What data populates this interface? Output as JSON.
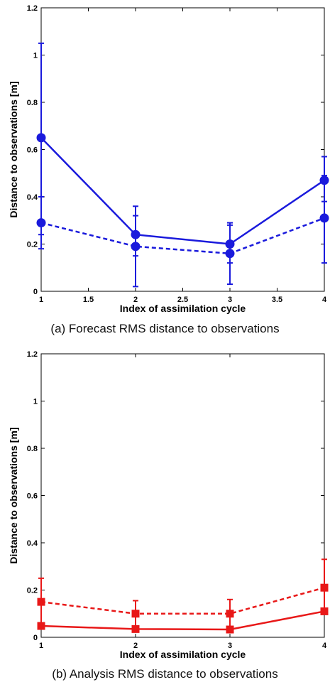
{
  "chart_data": [
    {
      "type": "line",
      "caption": "(a) Forecast RMS distance to observations",
      "xlabel": "Index of assimilation cycle",
      "ylabel": "Distance to observations [m]",
      "xlim": [
        1,
        4
      ],
      "ylim": [
        0,
        1.2
      ],
      "xticks": [
        "1",
        "1.5",
        "2",
        "2.5",
        "3",
        "3.5",
        "4"
      ],
      "yticks": [
        "0",
        "0.2",
        "0.4",
        "0.6",
        "0.8",
        "1",
        "1.2"
      ],
      "color": "#1a1adc",
      "marker": "circle",
      "series": [
        {
          "style": "solid",
          "x": [
            1,
            2,
            3,
            4
          ],
          "y": [
            0.65,
            0.24,
            0.2,
            0.47
          ],
          "err_low": [
            0.24,
            0.15,
            0.12,
            0.38
          ],
          "err_high": [
            1.05,
            0.32,
            0.28,
            0.57
          ]
        },
        {
          "style": "dashed",
          "x": [
            1,
            2,
            3,
            4
          ],
          "y": [
            0.29,
            0.19,
            0.16,
            0.31
          ],
          "err_low": [
            0.18,
            0.02,
            0.03,
            0.12
          ],
          "err_high": [
            0.4,
            0.36,
            0.29,
            0.49
          ]
        }
      ]
    },
    {
      "type": "line",
      "caption": "(b) Analysis RMS distance to observations",
      "xlabel": "Index of assimilation cycle",
      "ylabel": "Distance to observations [m]",
      "xlim": [
        1,
        4
      ],
      "ylim": [
        0,
        1.2
      ],
      "xticks": [
        "1",
        "2",
        "3",
        "4"
      ],
      "yticks": [
        "0",
        "0.2",
        "0.4",
        "0.6",
        "0.8",
        "1",
        "1.2"
      ],
      "color": "#e81818",
      "marker": "square",
      "series": [
        {
          "style": "solid",
          "x": [
            1,
            2,
            3,
            4
          ],
          "y": [
            0.048,
            0.035,
            0.033,
            0.11
          ],
          "err_low": [
            0.042,
            0.03,
            0.028,
            0.1
          ],
          "err_high": [
            0.055,
            0.04,
            0.038,
            0.12
          ]
        },
        {
          "style": "dashed",
          "x": [
            1,
            2,
            3,
            4
          ],
          "y": [
            0.15,
            0.1,
            0.1,
            0.21
          ],
          "err_low": [
            0.05,
            0.04,
            0.04,
            0.1
          ],
          "err_high": [
            0.25,
            0.155,
            0.16,
            0.33
          ]
        }
      ]
    }
  ]
}
